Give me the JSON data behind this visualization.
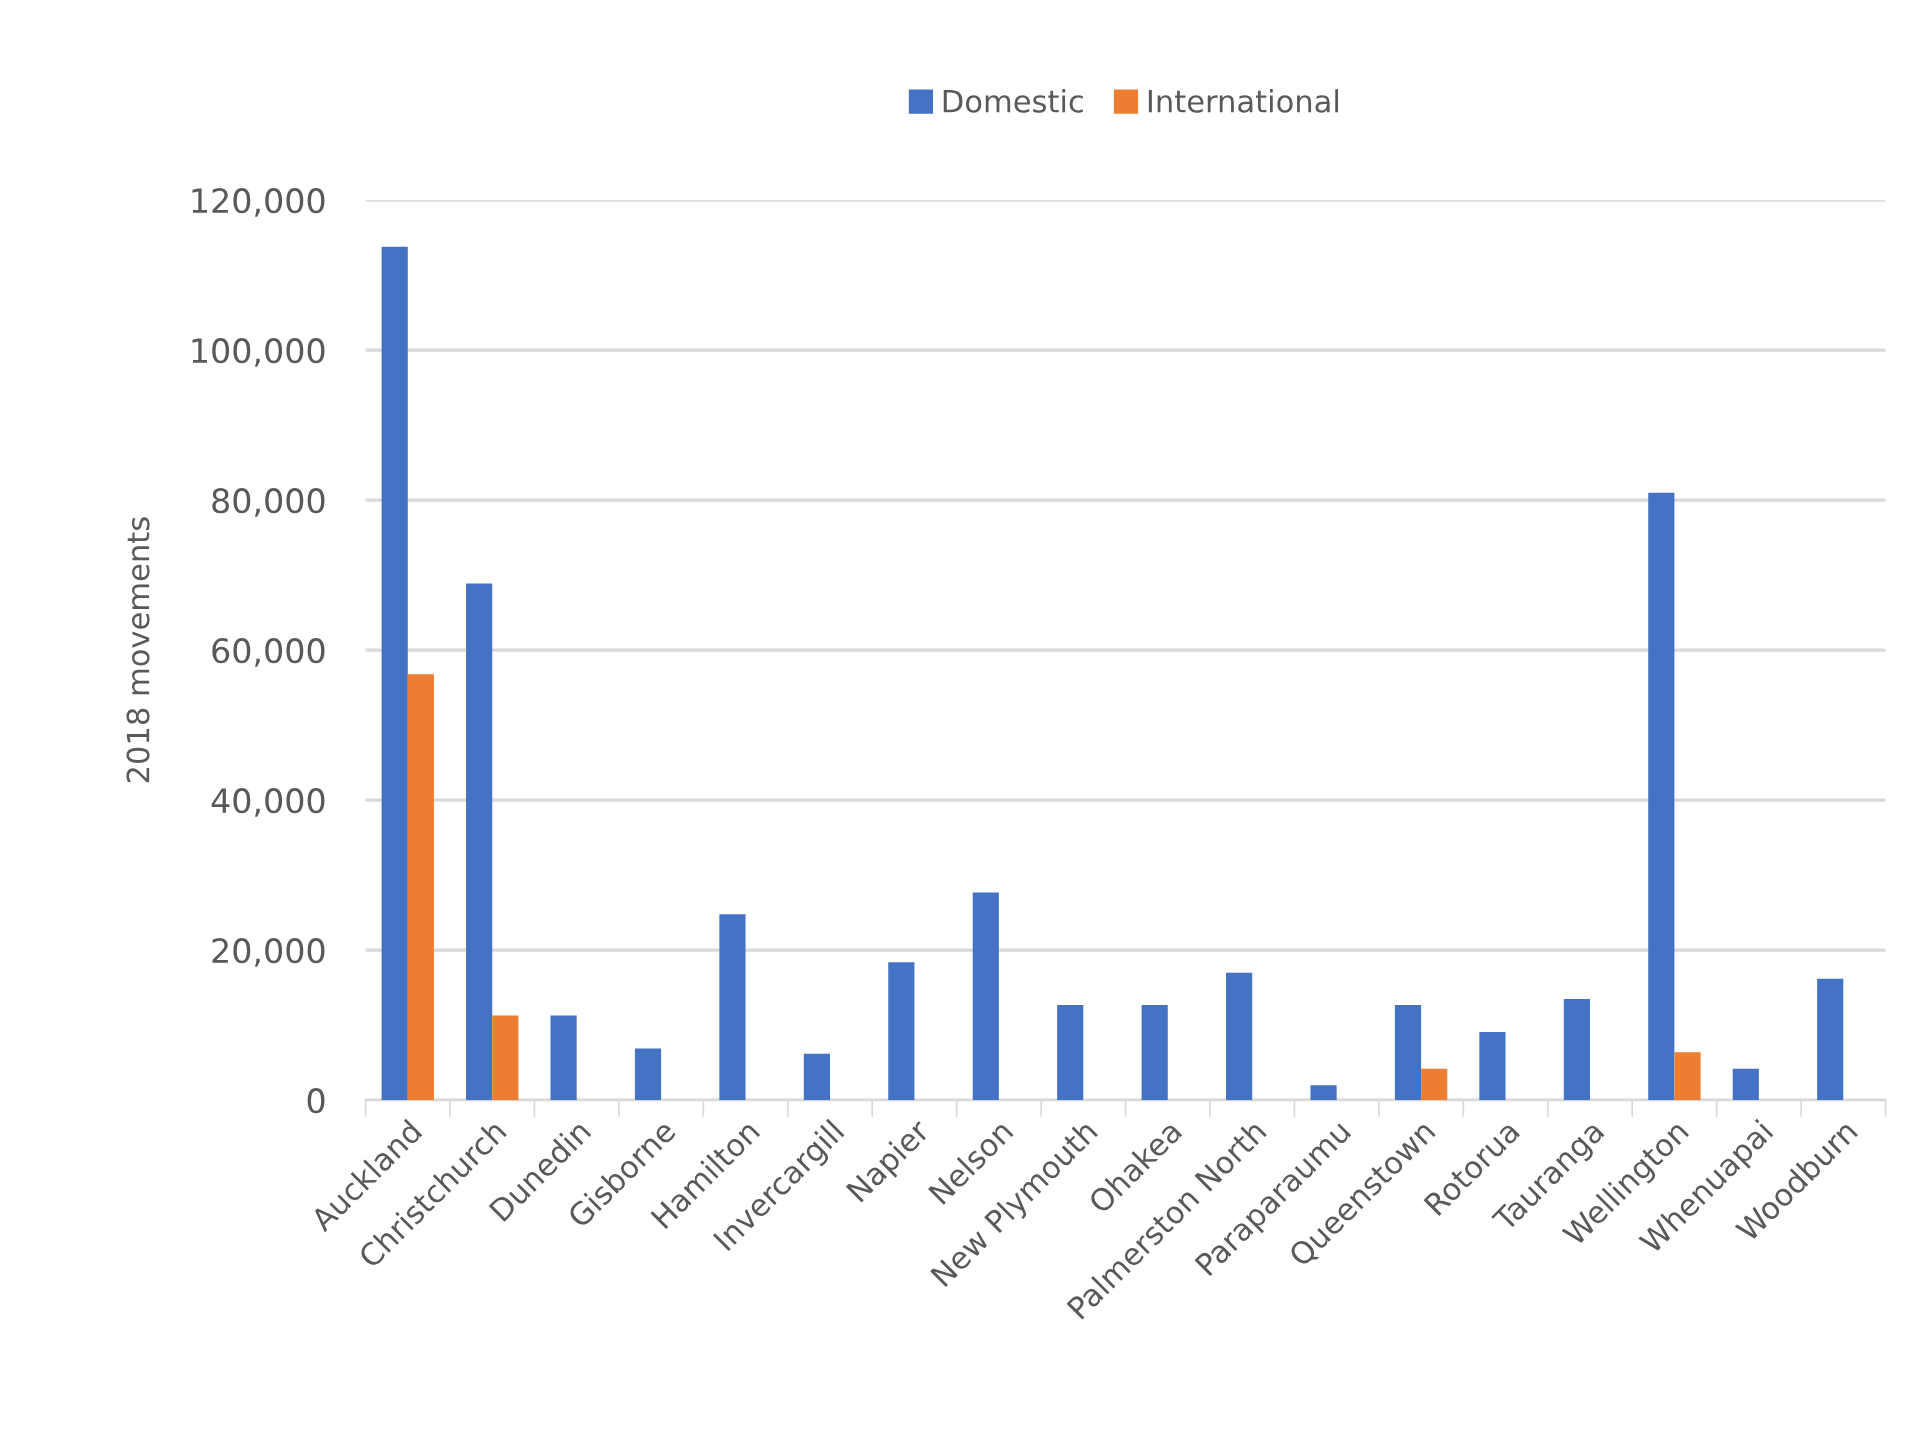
{
  "chart_data": {
    "type": "bar",
    "ylabel": "2018 movements",
    "categories": [
      "Auckland",
      "Christchurch",
      "Dunedin",
      "Gisborne",
      "Hamilton",
      "Invercargill",
      "Napier",
      "Nelson",
      "New Plymouth",
      "Ohakea",
      "Palmerston North",
      "Paraparaumu",
      "Queenstown",
      "Rotorua",
      "Tauranga",
      "Wellington",
      "Whenuapai",
      "Woodburn"
    ],
    "series": [
      {
        "name": "Domestic",
        "color": "#4472c4",
        "values": [
          113800,
          68900,
          11300,
          6900,
          24800,
          6200,
          18400,
          27700,
          12700,
          12700,
          17000,
          2000,
          12700,
          9100,
          13500,
          81000,
          4200,
          16200
        ]
      },
      {
        "name": "International",
        "color": "#ed7d31",
        "values": [
          56800,
          11300,
          null,
          null,
          null,
          null,
          null,
          null,
          null,
          null,
          null,
          null,
          4200,
          null,
          null,
          6400,
          null,
          null
        ]
      }
    ],
    "ylim": [
      0,
      120000
    ],
    "yticks": [
      {
        "value": 0,
        "label": "0"
      },
      {
        "value": 20000,
        "label": "20,000"
      },
      {
        "value": 40000,
        "label": "40,000"
      },
      {
        "value": 60000,
        "label": "60,000"
      },
      {
        "value": 80000,
        "label": "80,000"
      },
      {
        "value": 100000,
        "label": "100,000"
      },
      {
        "value": 120000,
        "label": "120,000"
      }
    ],
    "grid": "y",
    "legend": "top"
  }
}
